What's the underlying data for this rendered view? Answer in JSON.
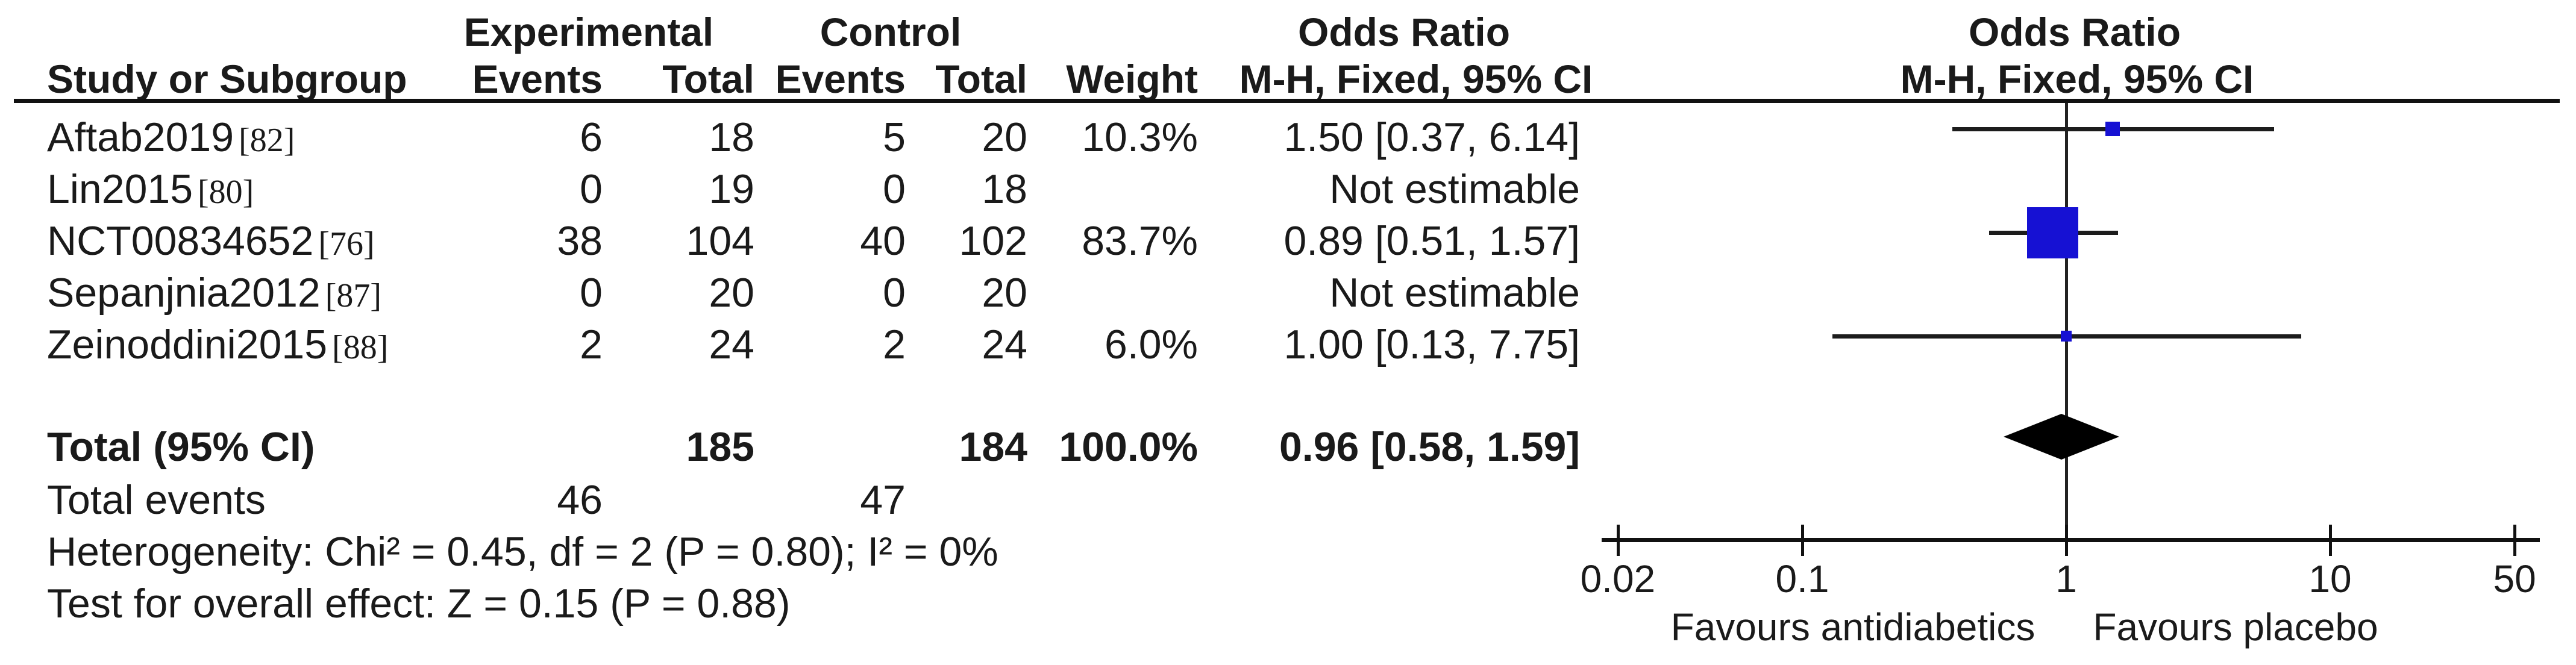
{
  "header": {
    "group_experimental": "Experimental",
    "group_control": "Control",
    "or_title_left": "Odds Ratio",
    "or_title_right": "Odds Ratio",
    "study_col": "Study or Subgroup",
    "events_col": "Events",
    "total_col": "Total",
    "weight_col": "Weight",
    "mh_left": "M-H, Fixed, 95% CI",
    "mh_right": "M-H, Fixed, 95% CI"
  },
  "rows": [
    {
      "study": "Aftab2019",
      "ref": "[82]",
      "exp_events": "6",
      "exp_total": "18",
      "ctrl_events": "5",
      "ctrl_total": "20",
      "weight": "10.3%",
      "or_text": "1.50 [0.37, 6.14]"
    },
    {
      "study": "Lin2015",
      "ref": "[80]",
      "exp_events": "0",
      "exp_total": "19",
      "ctrl_events": "0",
      "ctrl_total": "18",
      "weight": "",
      "or_text": "Not estimable"
    },
    {
      "study": "NCT00834652",
      "ref": "[76]",
      "exp_events": "38",
      "exp_total": "104",
      "ctrl_events": "40",
      "ctrl_total": "102",
      "weight": "83.7%",
      "or_text": "0.89 [0.51, 1.57]"
    },
    {
      "study": "Sepanjnia2012",
      "ref": "[87]",
      "exp_events": "0",
      "exp_total": "20",
      "ctrl_events": "0",
      "ctrl_total": "20",
      "weight": "",
      "or_text": "Not estimable"
    },
    {
      "study": "Zeinoddini2015",
      "ref": "[88]",
      "exp_events": "2",
      "exp_total": "24",
      "ctrl_events": "2",
      "ctrl_total": "24",
      "weight": "6.0%",
      "or_text": "1.00 [0.13, 7.75]"
    }
  ],
  "total_row": {
    "label": "Total (95% CI)",
    "exp_total": "185",
    "ctrl_total": "184",
    "weight": "100.0%",
    "or_text": "0.96 [0.58, 1.59]"
  },
  "total_events_row": {
    "label": "Total events",
    "exp": "46",
    "ctrl": "47"
  },
  "footer": {
    "heterogeneity": "Heterogeneity: Chi² = 0.45, df = 2 (P = 0.80); I² = 0%",
    "overall_effect": "Test for overall effect: Z = 0.15 (P = 0.88)"
  },
  "axis": {
    "tick_labels": [
      "0.02",
      "0.1",
      "1",
      "10",
      "50"
    ],
    "favours_left": "Favours antidiabetics",
    "favours_right": "Favours placebo"
  },
  "colors": {
    "square_blue": "#1611d3",
    "diamond_black": "#000000",
    "line_black": "#1c1c1c"
  },
  "chart_data": {
    "type": "forest",
    "effect_measure": "Odds Ratio, M-H, Fixed, 95% CI",
    "x_scale": "log10",
    "x_ticks": [
      0.02,
      0.1,
      1,
      10,
      50
    ],
    "x_range": [
      0.02,
      50
    ],
    "null_line": 1,
    "studies": [
      {
        "name": "Aftab2019",
        "ref": "[82]",
        "exp_events": 6,
        "exp_total": 18,
        "ctrl_events": 5,
        "ctrl_total": 20,
        "weight_pct": 10.3,
        "or": 1.5,
        "ci": [
          0.37,
          6.14
        ]
      },
      {
        "name": "Lin2015",
        "ref": "[80]",
        "exp_events": 0,
        "exp_total": 19,
        "ctrl_events": 0,
        "ctrl_total": 18,
        "weight_pct": null,
        "or": null,
        "ci": null,
        "note": "Not estimable"
      },
      {
        "name": "NCT00834652",
        "ref": "[76]",
        "exp_events": 38,
        "exp_total": 104,
        "ctrl_events": 40,
        "ctrl_total": 102,
        "weight_pct": 83.7,
        "or": 0.89,
        "ci": [
          0.51,
          1.57
        ]
      },
      {
        "name": "Sepanjnia2012",
        "ref": "[87]",
        "exp_events": 0,
        "exp_total": 20,
        "ctrl_events": 0,
        "ctrl_total": 20,
        "weight_pct": null,
        "or": null,
        "ci": null,
        "note": "Not estimable"
      },
      {
        "name": "Zeinoddini2015",
        "ref": "[88]",
        "exp_events": 2,
        "exp_total": 24,
        "ctrl_events": 2,
        "ctrl_total": 24,
        "weight_pct": 6.0,
        "or": 1.0,
        "ci": [
          0.13,
          7.75
        ]
      }
    ],
    "total": {
      "label": "Total (95% CI)",
      "exp_total": 185,
      "ctrl_total": 184,
      "weight_pct": 100.0,
      "or": 0.96,
      "ci": [
        0.58,
        1.59
      ],
      "total_events_exp": 46,
      "total_events_ctrl": 47
    },
    "heterogeneity": "Chi² = 0.45, df = 2 (P = 0.80); I² = 0%",
    "overall_effect": "Z = 0.15 (P = 0.88)",
    "favours": [
      "Favours antidiabetics",
      "Favours placebo"
    ]
  }
}
